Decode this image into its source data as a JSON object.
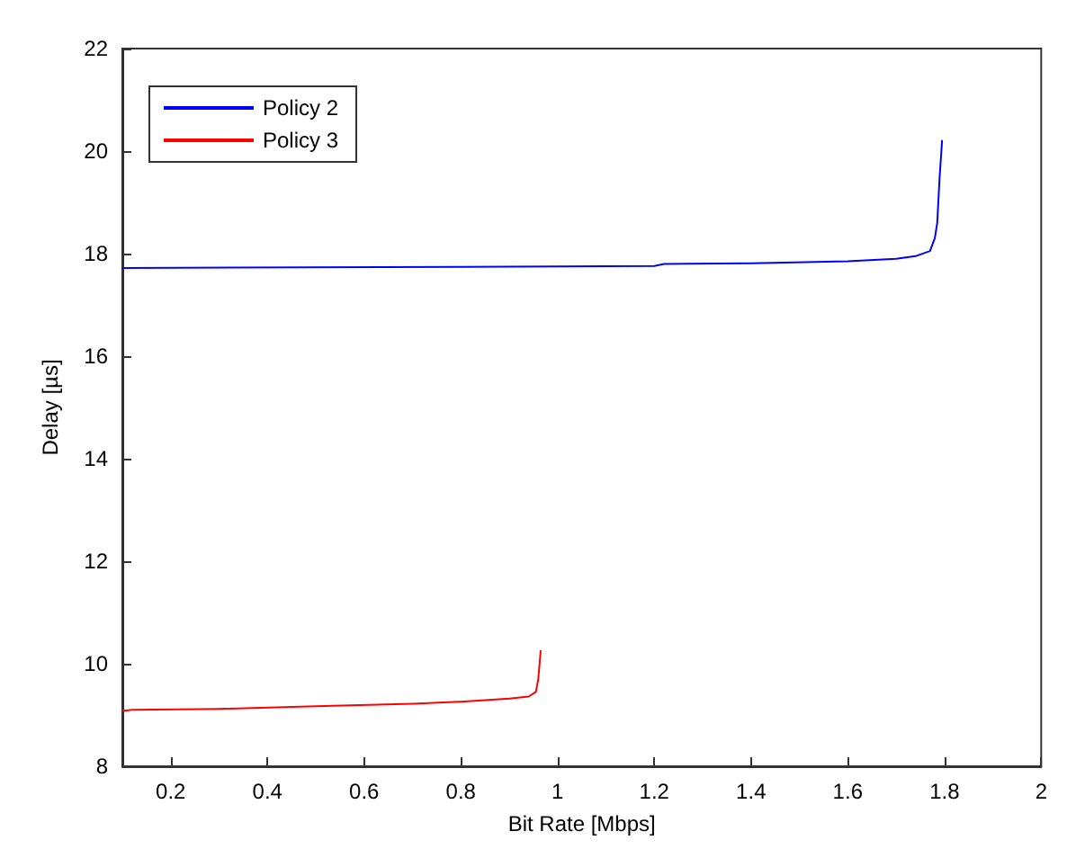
{
  "chart_data": {
    "type": "line",
    "xlabel": "Bit Rate [Mbps]",
    "ylabel": "Delay [µs]",
    "xlim": [
      0.1,
      2
    ],
    "xticks": [
      0.2,
      0.4,
      0.6,
      0.8,
      1,
      1.2,
      1.4,
      1.6,
      1.8,
      2
    ],
    "ylim": [
      8,
      22
    ],
    "yticks": [
      8,
      10,
      12,
      14,
      16,
      18,
      20,
      22
    ],
    "grid": false,
    "legend": "top left",
    "marker": "none",
    "line_style": "solid",
    "series": [
      {
        "name": "Policy 2",
        "color": "#0000ff",
        "x": [
          0.1,
          0.8,
          1.2,
          1.22,
          1.4,
          1.6,
          1.7,
          1.74,
          1.77,
          1.78,
          1.785,
          1.79,
          1.795
        ],
        "values": [
          17.72,
          17.74,
          17.76,
          17.8,
          17.81,
          17.85,
          17.9,
          17.95,
          18.05,
          18.3,
          18.6,
          19.5,
          20.2
        ]
      },
      {
        "name": "Policy 3",
        "color": "#ff0000",
        "x": [
          0.1,
          0.12,
          0.3,
          0.5,
          0.7,
          0.8,
          0.9,
          0.94,
          0.955,
          0.96,
          0.965
        ],
        "values": [
          9.08,
          9.1,
          9.12,
          9.17,
          9.22,
          9.26,
          9.32,
          9.36,
          9.45,
          9.7,
          10.25
        ]
      }
    ]
  }
}
